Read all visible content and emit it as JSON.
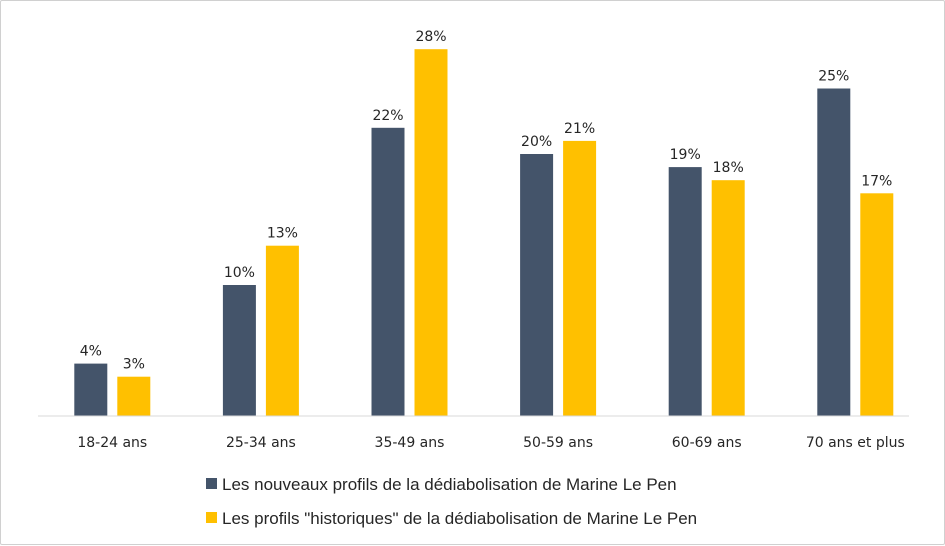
{
  "chart_data": {
    "type": "bar",
    "title": "",
    "xlabel": "",
    "ylabel": "",
    "ylim": [
      0,
      30
    ],
    "grid": false,
    "legend_position": "bottom",
    "value_suffix": "%",
    "categories": [
      "18-24 ans",
      "25-34 ans",
      "35-49 ans",
      "50-59 ans",
      "60-69 ans",
      "70 ans et plus"
    ],
    "series": [
      {
        "name": "Les nouveaux profils de la dédiabolisation de Marine Le Pen",
        "color": "#44546A",
        "values": [
          4,
          10,
          22,
          20,
          19,
          25
        ],
        "labels": [
          "4%",
          "10%",
          "22%",
          "20%",
          "19%",
          "25%"
        ]
      },
      {
        "name": "Les profils \"historiques\" de la dédiabolisation de Marine Le Pen",
        "color": "#FFC000",
        "values": [
          3,
          13,
          28,
          21,
          18,
          17
        ],
        "labels": [
          "3%",
          "13%",
          "28%",
          "21%",
          "18%",
          "17%"
        ]
      }
    ]
  }
}
